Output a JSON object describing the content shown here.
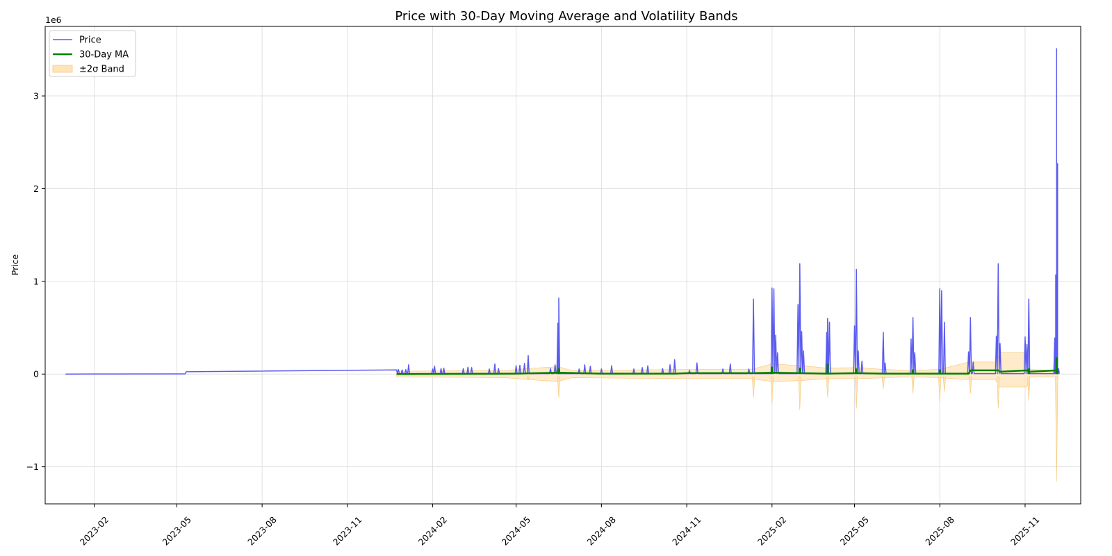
{
  "chart_data": {
    "type": "line",
    "title": "Price with 30-Day Moving Average and Volatility Bands",
    "xlabel": "",
    "ylabel": "Price",
    "y_offset_label": "1e6",
    "x_axis_type": "date",
    "xlim": [
      "2022-12-10",
      "2025-12-31"
    ],
    "ylim": [
      -1400000,
      3750000
    ],
    "x_ticks": [
      "2023-02-01",
      "2023-05-01",
      "2023-08-01",
      "2023-11-01",
      "2024-02-01",
      "2024-05-01",
      "2024-08-01",
      "2024-11-01",
      "2025-02-01",
      "2025-05-01",
      "2025-08-01",
      "2025-11-01"
    ],
    "x_tick_labels": [
      "2023-02",
      "2023-05",
      "2023-08",
      "2023-11",
      "2024-02",
      "2024-05",
      "2024-08",
      "2024-11",
      "2025-02",
      "2025-05",
      "2025-08",
      "2025-11"
    ],
    "y_ticks": [
      -1000000,
      0,
      1000000,
      2000000,
      3000000
    ],
    "y_tick_labels": [
      "−1",
      "0",
      "1",
      "2",
      "3"
    ],
    "grid": true,
    "legend_position": "top-left",
    "colors": {
      "price": "#5b5bf0",
      "ma": "#008000",
      "band": "#ffe4b8",
      "band_edge": "#f5c77a"
    },
    "legend": [
      {
        "key": "price",
        "label": "Price"
      },
      {
        "key": "ma",
        "label": "30-Day MA"
      },
      {
        "key": "band",
        "label": "±2σ Band"
      }
    ],
    "price_baseline": [
      [
        "2023-01-01",
        0
      ],
      [
        "2023-05-10",
        2000
      ],
      [
        "2023-05-11",
        25000
      ],
      [
        "2023-12-24",
        45000
      ]
    ],
    "spikes": [
      [
        "2023-12-26",
        50000
      ],
      [
        "2023-12-30",
        45000
      ],
      [
        "2024-01-03",
        48000
      ],
      [
        "2024-01-06",
        100000
      ],
      [
        "2024-02-01",
        55000
      ],
      [
        "2024-02-03",
        85000
      ],
      [
        "2024-02-10",
        60000
      ],
      [
        "2024-02-13",
        65000
      ],
      [
        "2024-03-05",
        60000
      ],
      [
        "2024-03-10",
        75000
      ],
      [
        "2024-03-14",
        70000
      ],
      [
        "2024-04-02",
        55000
      ],
      [
        "2024-04-08",
        110000
      ],
      [
        "2024-04-12",
        60000
      ],
      [
        "2024-05-01",
        90000
      ],
      [
        "2024-05-05",
        95000
      ],
      [
        "2024-05-10",
        115000
      ],
      [
        "2024-05-14",
        200000
      ],
      [
        "2024-06-07",
        60000
      ],
      [
        "2024-06-12",
        100000
      ],
      [
        "2024-06-15",
        550000
      ],
      [
        "2024-06-16",
        820000
      ],
      [
        "2024-07-08",
        55000
      ],
      [
        "2024-07-14",
        100000
      ],
      [
        "2024-07-20",
        85000
      ],
      [
        "2024-08-01",
        55000
      ],
      [
        "2024-08-12",
        90000
      ],
      [
        "2024-09-05",
        55000
      ],
      [
        "2024-09-14",
        70000
      ],
      [
        "2024-09-20",
        90000
      ],
      [
        "2024-10-06",
        60000
      ],
      [
        "2024-10-14",
        100000
      ],
      [
        "2024-10-19",
        155000
      ],
      [
        "2024-11-04",
        40000
      ],
      [
        "2024-11-12",
        120000
      ],
      [
        "2024-12-10",
        55000
      ],
      [
        "2024-12-18",
        110000
      ],
      [
        "2025-01-07",
        55000
      ],
      [
        "2025-01-12",
        810000
      ],
      [
        "2025-02-01",
        930000
      ],
      [
        "2025-02-03",
        920000
      ],
      [
        "2025-02-05",
        420000
      ],
      [
        "2025-02-07",
        230000
      ],
      [
        "2025-03-01",
        750000
      ],
      [
        "2025-03-03",
        1190000
      ],
      [
        "2025-03-05",
        460000
      ],
      [
        "2025-03-07",
        250000
      ],
      [
        "2025-04-01",
        450000
      ],
      [
        "2025-04-02",
        600000
      ],
      [
        "2025-04-04",
        560000
      ],
      [
        "2025-05-01",
        520000
      ],
      [
        "2025-05-03",
        1130000
      ],
      [
        "2025-05-05",
        250000
      ],
      [
        "2025-05-09",
        140000
      ],
      [
        "2025-06-01",
        450000
      ],
      [
        "2025-06-03",
        120000
      ],
      [
        "2025-07-01",
        380000
      ],
      [
        "2025-07-03",
        610000
      ],
      [
        "2025-07-05",
        230000
      ],
      [
        "2025-08-01",
        920000
      ],
      [
        "2025-08-03",
        900000
      ],
      [
        "2025-08-06",
        560000
      ],
      [
        "2025-09-01",
        240000
      ],
      [
        "2025-09-03",
        610000
      ],
      [
        "2025-09-06",
        130000
      ],
      [
        "2025-10-01",
        410000
      ],
      [
        "2025-10-03",
        1190000
      ],
      [
        "2025-10-05",
        330000
      ],
      [
        "2025-11-01",
        400000
      ],
      [
        "2025-11-03",
        320000
      ],
      [
        "2025-11-05",
        810000
      ],
      [
        "2025-12-03",
        390000
      ],
      [
        "2025-12-04",
        1070000
      ],
      [
        "2025-12-05",
        3510000
      ],
      [
        "2025-12-06",
        2270000
      ],
      [
        "2025-12-07",
        60000
      ]
    ],
    "ma": [
      [
        "2023-12-24",
        0
      ],
      [
        "2024-05-01",
        5000
      ],
      [
        "2024-06-16",
        15000
      ],
      [
        "2024-08-01",
        5000
      ],
      [
        "2024-10-20",
        5000
      ],
      [
        "2024-11-01",
        10000
      ],
      [
        "2025-01-12",
        10000
      ],
      [
        "2025-02-01",
        15000
      ],
      [
        "2025-03-03",
        10000
      ],
      [
        "2025-04-01",
        5000
      ],
      [
        "2025-05-03",
        10000
      ],
      [
        "2025-06-01",
        5000
      ],
      [
        "2025-07-01",
        5000
      ],
      [
        "2025-08-01",
        5000
      ],
      [
        "2025-09-01",
        5000
      ],
      [
        "2025-09-03",
        40000
      ],
      [
        "2025-10-03",
        40000
      ],
      [
        "2025-10-05",
        25000
      ],
      [
        "2025-11-03",
        40000
      ],
      [
        "2025-11-05",
        25000
      ],
      [
        "2025-12-05",
        40000
      ],
      [
        "2025-12-07",
        20000
      ]
    ],
    "ma_jumps": [
      [
        "2024-06-16",
        60000
      ],
      [
        "2025-02-01",
        80000
      ],
      [
        "2025-03-03",
        70000
      ],
      [
        "2025-04-02",
        110000
      ],
      [
        "2025-05-03",
        60000
      ],
      [
        "2025-07-03",
        50000
      ],
      [
        "2025-08-01",
        50000
      ],
      [
        "2025-11-05",
        60000
      ],
      [
        "2025-12-05",
        180000
      ]
    ],
    "band": [
      [
        "2023-12-24",
        30000,
        -30000
      ],
      [
        "2024-04-20",
        40000,
        -40000
      ],
      [
        "2024-05-14",
        60000,
        -60000
      ],
      [
        "2024-06-15",
        80000,
        -80000
      ],
      [
        "2024-06-30",
        40000,
        -40000
      ],
      [
        "2024-11-01",
        50000,
        -50000
      ],
      [
        "2025-01-10",
        50000,
        -50000
      ],
      [
        "2025-02-01",
        110000,
        -80000
      ],
      [
        "2025-03-05",
        90000,
        -70000
      ],
      [
        "2025-04-01",
        65000,
        -50000
      ],
      [
        "2025-05-05",
        70000,
        -50000
      ],
      [
        "2025-06-02",
        50000,
        -40000
      ],
      [
        "2025-07-01",
        40000,
        -30000
      ],
      [
        "2025-08-01",
        50000,
        -40000
      ],
      [
        "2025-09-01",
        130000,
        -60000
      ],
      [
        "2025-09-30",
        130000,
        -60000
      ],
      [
        "2025-10-05",
        230000,
        -140000
      ],
      [
        "2025-11-03",
        230000,
        -140000
      ],
      [
        "2025-11-05",
        50000,
        -30000
      ],
      [
        "2025-12-03",
        40000,
        -30000
      ],
      [
        "2025-12-07",
        40000,
        -30000
      ]
    ],
    "band_dips": [
      [
        "2024-05-14",
        -60000
      ],
      [
        "2024-06-16",
        -260000
      ],
      [
        "2025-01-12",
        -260000
      ],
      [
        "2025-02-01",
        -320000
      ],
      [
        "2025-03-03",
        -390000
      ],
      [
        "2025-04-02",
        -250000
      ],
      [
        "2025-05-03",
        -370000
      ],
      [
        "2025-06-01",
        -160000
      ],
      [
        "2025-07-03",
        -210000
      ],
      [
        "2025-08-01",
        -300000
      ],
      [
        "2025-08-06",
        -190000
      ],
      [
        "2025-09-03",
        -210000
      ],
      [
        "2025-10-03",
        -370000
      ],
      [
        "2025-11-05",
        -290000
      ],
      [
        "2025-12-05",
        -1160000
      ]
    ]
  }
}
